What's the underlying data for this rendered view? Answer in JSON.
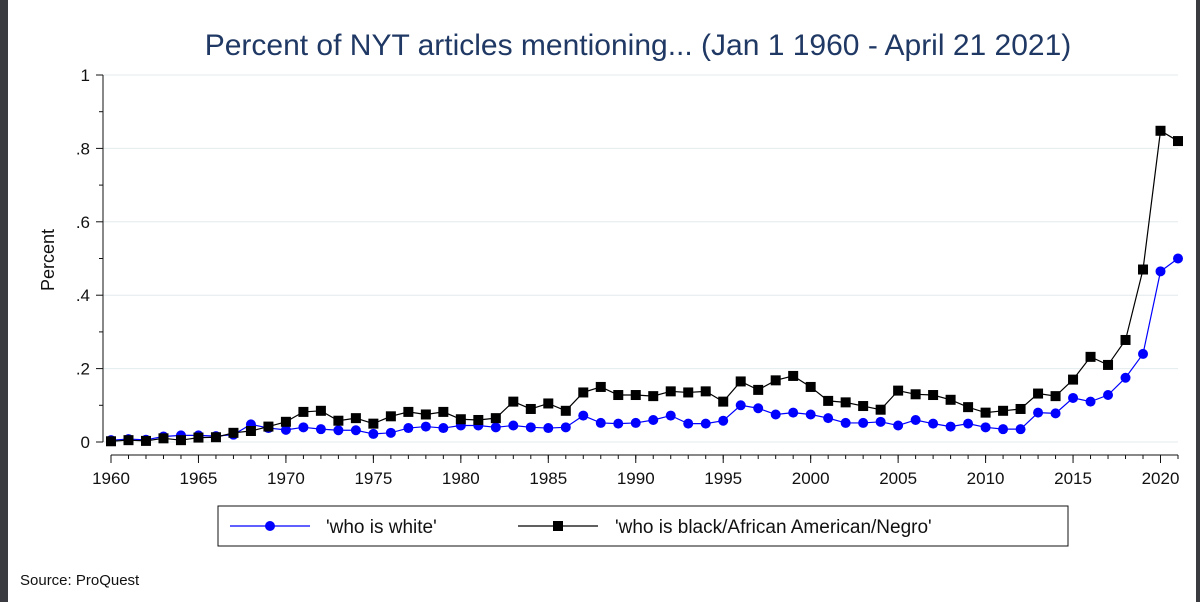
{
  "chart_data": {
    "type": "line",
    "title": "Percent of NYT articles mentioning... (Jan 1 1960 - April 21 2021)",
    "xlabel": "",
    "ylabel": "Percent",
    "xlim": [
      1960,
      2021
    ],
    "ylim": [
      0,
      1
    ],
    "x_ticks": [
      1960,
      1965,
      1970,
      1975,
      1980,
      1985,
      1990,
      1995,
      2000,
      2005,
      2010,
      2015,
      2020
    ],
    "x_tick_labels": [
      "1960",
      "1965",
      "1970",
      "1975",
      "1980",
      "1985",
      "1990",
      "1995",
      "2000",
      "2005",
      "2010",
      "2015",
      "2020"
    ],
    "y_ticks": [
      0,
      0.2,
      0.4,
      0.6,
      0.8,
      1
    ],
    "y_tick_labels": [
      "0",
      ".2",
      ".4",
      ".6",
      ".8",
      "1"
    ],
    "grid": true,
    "legend_position": "bottom",
    "x": [
      1960,
      1961,
      1962,
      1963,
      1964,
      1965,
      1966,
      1967,
      1968,
      1969,
      1970,
      1971,
      1972,
      1973,
      1974,
      1975,
      1976,
      1977,
      1978,
      1979,
      1980,
      1981,
      1982,
      1983,
      1984,
      1985,
      1986,
      1987,
      1988,
      1989,
      1990,
      1991,
      1992,
      1993,
      1994,
      1995,
      1996,
      1997,
      1998,
      1999,
      2000,
      2001,
      2002,
      2003,
      2004,
      2005,
      2006,
      2007,
      2008,
      2009,
      2010,
      2011,
      2012,
      2013,
      2014,
      2015,
      2016,
      2017,
      2018,
      2019,
      2020,
      2021
    ],
    "series": [
      {
        "name": "'who is white'",
        "color": "#0000ff",
        "marker": "circle",
        "values": [
          0.005,
          0.008,
          0.006,
          0.015,
          0.018,
          0.018,
          0.016,
          0.02,
          0.048,
          0.038,
          0.033,
          0.04,
          0.035,
          0.032,
          0.032,
          0.022,
          0.025,
          0.038,
          0.042,
          0.038,
          0.045,
          0.045,
          0.04,
          0.045,
          0.04,
          0.038,
          0.04,
          0.072,
          0.052,
          0.05,
          0.052,
          0.06,
          0.072,
          0.05,
          0.05,
          0.058,
          0.1,
          0.092,
          0.075,
          0.08,
          0.075,
          0.065,
          0.052,
          0.052,
          0.055,
          0.045,
          0.06,
          0.05,
          0.042,
          0.05,
          0.04,
          0.035,
          0.035,
          0.08,
          0.078,
          0.12,
          0.11,
          0.128,
          0.175,
          0.24,
          0.465,
          0.5
        ]
      },
      {
        "name": "'who is black/African American/Negro'",
        "color": "#000000",
        "marker": "square",
        "values": [
          0.002,
          0.005,
          0.003,
          0.01,
          0.005,
          0.012,
          0.013,
          0.025,
          0.03,
          0.042,
          0.055,
          0.082,
          0.085,
          0.058,
          0.065,
          0.05,
          0.07,
          0.082,
          0.075,
          0.082,
          0.062,
          0.06,
          0.065,
          0.11,
          0.09,
          0.105,
          0.085,
          0.135,
          0.15,
          0.128,
          0.128,
          0.125,
          0.138,
          0.135,
          0.138,
          0.11,
          0.165,
          0.142,
          0.168,
          0.18,
          0.15,
          0.112,
          0.108,
          0.098,
          0.088,
          0.14,
          0.13,
          0.128,
          0.115,
          0.095,
          0.08,
          0.085,
          0.09,
          0.132,
          0.125,
          0.17,
          0.232,
          0.21,
          0.278,
          0.47,
          0.848,
          0.82
        ]
      }
    ],
    "source": "Source: ProQuest"
  }
}
